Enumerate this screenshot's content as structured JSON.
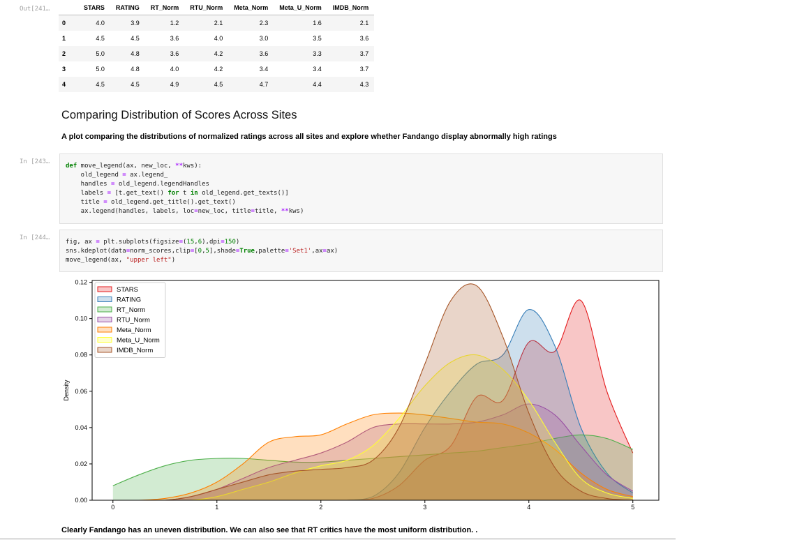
{
  "out_prompt": "Out[241…",
  "in_prompt_1": "In [243…",
  "in_prompt_2": "In [244…",
  "dataframe": {
    "columns": [
      "STARS",
      "RATING",
      "RT_Norm",
      "RTU_Norm",
      "Meta_Norm",
      "Meta_U_Norm",
      "IMDB_Norm"
    ],
    "rows": [
      {
        "index": "0",
        "values": [
          "4.0",
          "3.9",
          "1.2",
          "2.1",
          "2.3",
          "1.6",
          "2.1"
        ]
      },
      {
        "index": "1",
        "values": [
          "4.5",
          "4.5",
          "3.6",
          "4.0",
          "3.0",
          "3.5",
          "3.6"
        ]
      },
      {
        "index": "2",
        "values": [
          "5.0",
          "4.8",
          "3.6",
          "4.2",
          "3.6",
          "3.3",
          "3.7"
        ]
      },
      {
        "index": "3",
        "values": [
          "5.0",
          "4.8",
          "4.0",
          "4.2",
          "3.4",
          "3.4",
          "3.7"
        ]
      },
      {
        "index": "4",
        "values": [
          "4.5",
          "4.5",
          "4.9",
          "4.5",
          "4.7",
          "4.4",
          "4.3"
        ]
      }
    ]
  },
  "section_title": "Comparing Distribution of Scores Across Sites",
  "section_description": "A plot comparing the distributions of normalized ratings across all sites and explore whether Fandango display abnormally high ratings",
  "code_cell_1": {
    "lines": [
      "def move_legend(ax, new_loc, **kws):",
      "    old_legend = ax.legend_",
      "    handles = old_legend.legendHandles",
      "    labels = [t.get_text() for t in old_legend.get_texts()]",
      "    title = old_legend.get_title().get_text()",
      "    ax.legend(handles, labels, loc=new_loc, title=title, **kws)"
    ]
  },
  "code_cell_2": {
    "lines": [
      "fig, ax = plt.subplots(figsize=(15,6),dpi=150)",
      "sns.kdeplot(data=norm_scores,clip=[0,5],shade=True,palette='Set1',ax=ax)",
      "move_legend(ax, \"upper left\")"
    ]
  },
  "footer_text": "Clearly Fandango has an uneven distribution. We can also see that RT critics have the most uniform distribution. .",
  "chart_data": {
    "type": "area",
    "ylabel": "Density",
    "xlabel": "",
    "xlim": [
      -0.2,
      5.25
    ],
    "ylim": [
      0,
      0.121
    ],
    "xticks": [
      "0",
      "1",
      "2",
      "3",
      "4",
      "5"
    ],
    "yticks": [
      "0.00",
      "0.02",
      "0.04",
      "0.06",
      "0.08",
      "0.10",
      "0.12"
    ],
    "grid": false,
    "legend_position": "upper-left",
    "x": [
      0,
      0.25,
      0.5,
      0.75,
      1,
      1.25,
      1.5,
      1.75,
      2,
      2.25,
      2.5,
      2.75,
      3,
      3.25,
      3.5,
      3.75,
      4,
      4.25,
      4.5,
      4.75,
      5
    ],
    "series": [
      {
        "name": "STARS",
        "color": "#e41a1c",
        "values": [
          0,
          0,
          0,
          0,
          0,
          0,
          0,
          0,
          0,
          0,
          0.001,
          0.008,
          0.022,
          0.03,
          0.057,
          0.055,
          0.087,
          0.082,
          0.11,
          0.06,
          0.026
        ]
      },
      {
        "name": "RATING",
        "color": "#377eb8",
        "values": [
          0,
          0,
          0,
          0,
          0,
          0,
          0,
          0,
          0,
          0,
          0.002,
          0.015,
          0.04,
          0.06,
          0.075,
          0.08,
          0.105,
          0.085,
          0.04,
          0.015,
          0.004
        ]
      },
      {
        "name": "RT_Norm",
        "color": "#4daf4a",
        "values": [
          0.008,
          0.014,
          0.019,
          0.022,
          0.023,
          0.023,
          0.022,
          0.021,
          0.021,
          0.022,
          0.023,
          0.024,
          0.025,
          0.026,
          0.027,
          0.029,
          0.031,
          0.034,
          0.036,
          0.034,
          0.028
        ]
      },
      {
        "name": "RTU_Norm",
        "color": "#984ea3",
        "values": [
          0,
          0,
          0,
          0.002,
          0.006,
          0.012,
          0.018,
          0.022,
          0.026,
          0.032,
          0.04,
          0.042,
          0.042,
          0.042,
          0.043,
          0.047,
          0.053,
          0.047,
          0.03,
          0.014,
          0.005
        ]
      },
      {
        "name": "Meta_Norm",
        "color": "#ff7f00",
        "values": [
          0,
          0,
          0.001,
          0.004,
          0.01,
          0.02,
          0.032,
          0.035,
          0.036,
          0.042,
          0.047,
          0.048,
          0.047,
          0.045,
          0.043,
          0.042,
          0.037,
          0.028,
          0.015,
          0.006,
          0.002
        ]
      },
      {
        "name": "Meta_U_Norm",
        "color": "#ffff33",
        "values": [
          0,
          0,
          0,
          0,
          0.002,
          0.006,
          0.01,
          0.015,
          0.019,
          0.022,
          0.03,
          0.045,
          0.063,
          0.076,
          0.08,
          0.072,
          0.055,
          0.032,
          0.012,
          0.004,
          0.001
        ]
      },
      {
        "name": "IMDB_Norm",
        "color": "#a65628",
        "values": [
          0,
          0,
          0,
          0.002,
          0.006,
          0.01,
          0.014,
          0.016,
          0.017,
          0.018,
          0.022,
          0.04,
          0.075,
          0.11,
          0.118,
          0.09,
          0.048,
          0.018,
          0.005,
          0.001,
          0
        ]
      }
    ]
  }
}
